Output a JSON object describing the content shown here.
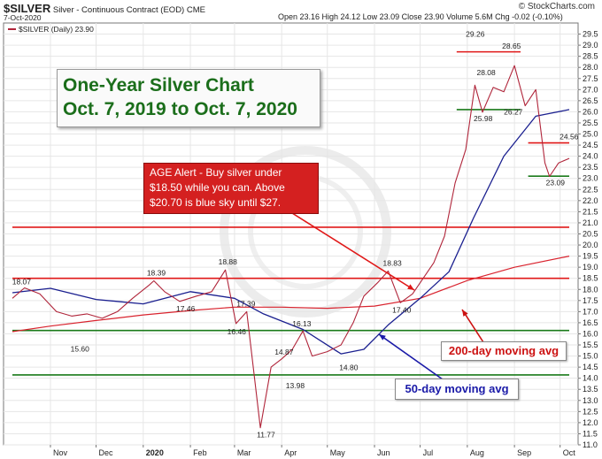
{
  "header": {
    "symbol": "$SILVER",
    "description": "Silver - Continuous Contract (EOD)",
    "exchange": "CME",
    "date": "7-Oct-2020",
    "ohlc_text": "Open 23.16  High 24.12  Low 23.09  Close 23.90  Volume 5.6M  Chg -0.02 (-0.10%)",
    "watermark": "© StockCharts.com",
    "legend": "$SILVER (Daily) 23.90"
  },
  "title": {
    "line1": "One-Year Silver Chart",
    "line2": "Oct. 7, 2019 to Oct. 7, 2020"
  },
  "alert": {
    "line1": "AGE Alert - Buy silver under",
    "line2": "$18.50 while you can. Above",
    "line3": "$20.70 is blue sky until $27."
  },
  "annotations": {
    "ma200": "200-day moving avg",
    "ma50": "50-day moving avg"
  },
  "colors": {
    "price": "#b0253a",
    "ma50": "#1a1f8f",
    "ma200": "#d9232e",
    "support": "#1a7a1a",
    "resistance": "#e01818",
    "title_text": "#1b6e1b",
    "alert_bg": "#d42020",
    "ma200_text": "#cc1111",
    "ma50_text": "#1a1aa8"
  },
  "chart_data": {
    "type": "line",
    "ylim": [
      11.0,
      30.0
    ],
    "y_ticks": [
      "11.0",
      "11.5",
      "12.0",
      "12.5",
      "13.0",
      "13.5",
      "14.0",
      "14.5",
      "15.0",
      "15.5",
      "16.0",
      "16.5",
      "17.0",
      "17.5",
      "18.0",
      "18.5",
      "19.0",
      "19.5",
      "20.0",
      "20.5",
      "21.0",
      "21.5",
      "22.0",
      "22.5",
      "23.0",
      "23.5",
      "24.0",
      "24.5",
      "25.0",
      "25.5",
      "26.0",
      "26.5",
      "27.0",
      "27.5",
      "28.0",
      "28.5",
      "29.0",
      "29.5"
    ],
    "x_ticks": [
      "Nov",
      "Dec",
      "2020",
      "Feb",
      "Mar",
      "Apr",
      "May",
      "Jun",
      "Jul",
      "Aug",
      "Sep",
      "Oct"
    ],
    "series": [
      {
        "key": "price",
        "x": [
          "2019-10-07",
          "2019-10-15",
          "2019-10-25",
          "2019-11-05",
          "2019-11-15",
          "2019-11-25",
          "2019-12-05",
          "2019-12-15",
          "2019-12-25",
          "2020-01-05",
          "2020-01-08",
          "2020-01-15",
          "2020-01-25",
          "2020-02-05",
          "2020-02-15",
          "2020-02-24",
          "2020-03-02",
          "2020-03-09",
          "2020-03-18",
          "2020-03-25",
          "2020-04-01",
          "2020-04-08",
          "2020-04-15",
          "2020-04-21",
          "2020-05-01",
          "2020-05-10",
          "2020-05-18",
          "2020-05-25",
          "2020-06-03",
          "2020-06-10",
          "2020-06-18",
          "2020-06-26",
          "2020-07-03",
          "2020-07-10",
          "2020-07-17",
          "2020-07-24",
          "2020-07-31",
          "2020-08-06",
          "2020-08-11",
          "2020-08-18",
          "2020-08-25",
          "2020-09-01",
          "2020-09-08",
          "2020-09-15",
          "2020-09-21",
          "2020-09-24",
          "2020-09-30",
          "2020-10-07"
        ],
        "values": [
          17.6,
          18.07,
          17.8,
          17.0,
          16.8,
          16.9,
          16.7,
          17.0,
          17.6,
          18.2,
          18.39,
          17.9,
          17.46,
          17.7,
          17.9,
          18.88,
          16.46,
          17.0,
          11.77,
          14.5,
          14.87,
          15.3,
          16.13,
          15.0,
          15.2,
          15.5,
          16.5,
          17.7,
          18.3,
          18.83,
          17.4,
          17.8,
          18.5,
          19.2,
          20.4,
          22.8,
          24.3,
          27.2,
          25.98,
          27.1,
          26.9,
          28.08,
          26.27,
          27.0,
          23.7,
          23.09,
          23.7,
          23.9
        ]
      },
      {
        "key": "ma50",
        "x": [
          "2019-10-07",
          "2019-11-01",
          "2019-12-01",
          "2020-01-01",
          "2020-02-01",
          "2020-03-01",
          "2020-03-20",
          "2020-04-15",
          "2020-05-10",
          "2020-05-25",
          "2020-06-10",
          "2020-07-01",
          "2020-07-20",
          "2020-08-05",
          "2020-08-25",
          "2020-09-15",
          "2020-10-07"
        ],
        "values": [
          17.85,
          18.05,
          17.55,
          17.35,
          17.9,
          17.6,
          16.9,
          16.2,
          15.1,
          15.3,
          16.4,
          17.6,
          18.8,
          21.2,
          24.0,
          25.8,
          26.1
        ]
      },
      {
        "key": "ma200",
        "x": [
          "2019-10-07",
          "2019-11-01",
          "2019-12-01",
          "2020-01-01",
          "2020-02-01",
          "2020-03-01",
          "2020-04-01",
          "2020-05-01",
          "2020-06-01",
          "2020-07-01",
          "2020-08-01",
          "2020-09-01",
          "2020-10-07"
        ],
        "values": [
          16.1,
          16.35,
          16.6,
          16.85,
          17.05,
          17.2,
          17.2,
          17.15,
          17.25,
          17.6,
          18.4,
          19.0,
          19.5
        ]
      }
    ],
    "horizontal_lines": [
      {
        "kind": "resistance",
        "value": 28.7,
        "x0": "2020-07-25",
        "x1": "2020-09-05"
      },
      {
        "kind": "support",
        "value": 26.1,
        "x0": "2020-07-25",
        "x1": "2020-09-05"
      },
      {
        "kind": "resistance",
        "value": 24.6,
        "x0": "2020-09-10",
        "x1": "2020-10-07"
      },
      {
        "kind": "support",
        "value": 23.1,
        "x0": "2020-09-10",
        "x1": "2020-10-07"
      },
      {
        "kind": "resistance",
        "value": 20.8,
        "x0": "2019-10-07",
        "x1": "2020-10-07"
      },
      {
        "kind": "resistance",
        "value": 18.5,
        "x0": "2019-10-07",
        "x1": "2020-10-07"
      },
      {
        "kind": "support",
        "value": 16.15,
        "x0": "2019-10-07",
        "x1": "2020-10-07"
      },
      {
        "kind": "support",
        "value": 14.15,
        "x0": "2019-10-07",
        "x1": "2020-10-07"
      }
    ],
    "point_labels": [
      {
        "text": "18.07",
        "x": "2019-10-15",
        "y": 18.07
      },
      {
        "text": "18.39",
        "x": "2020-01-08",
        "y": 18.39
      },
      {
        "text": "17.46",
        "x": "2020-01-25",
        "y": 17.46
      },
      {
        "text": "18.88",
        "x": "2020-02-24",
        "y": 18.88
      },
      {
        "text": "17.39",
        "x": "2020-02-29",
        "y": 17.39
      },
      {
        "text": "16.46",
        "x": "2020-03-02",
        "y": 16.46
      },
      {
        "text": "15.60",
        "x": "2019-11-20",
        "y": 15.6
      },
      {
        "text": "11.77",
        "x": "2020-03-18",
        "y": 11.77
      },
      {
        "text": "14.87",
        "x": "2020-04-01",
        "y": 14.87
      },
      {
        "text": "13.98",
        "x": "2020-04-06",
        "y": 13.98
      },
      {
        "text": "16.13",
        "x": "2020-04-15",
        "y": 16.13
      },
      {
        "text": "14.80",
        "x": "2020-05-10",
        "y": 14.8
      },
      {
        "text": "18.83",
        "x": "2020-06-10",
        "y": 18.83
      },
      {
        "text": "17.40",
        "x": "2020-06-22",
        "y": 17.4
      },
      {
        "text": "29.26",
        "x": "2020-08-07",
        "y": 29.26
      },
      {
        "text": "28.08",
        "x": "2020-08-13",
        "y": 28.08
      },
      {
        "text": "28.65",
        "x": "2020-09-01",
        "y": 28.65
      },
      {
        "text": "25.98",
        "x": "2020-08-11",
        "y": 25.98
      },
      {
        "text": "26.27",
        "x": "2020-09-01",
        "y": 26.27
      },
      {
        "text": "24.56",
        "x": "2020-10-03",
        "y": 24.56
      },
      {
        "text": "23.09",
        "x": "2020-09-24",
        "y": 23.09
      }
    ]
  }
}
